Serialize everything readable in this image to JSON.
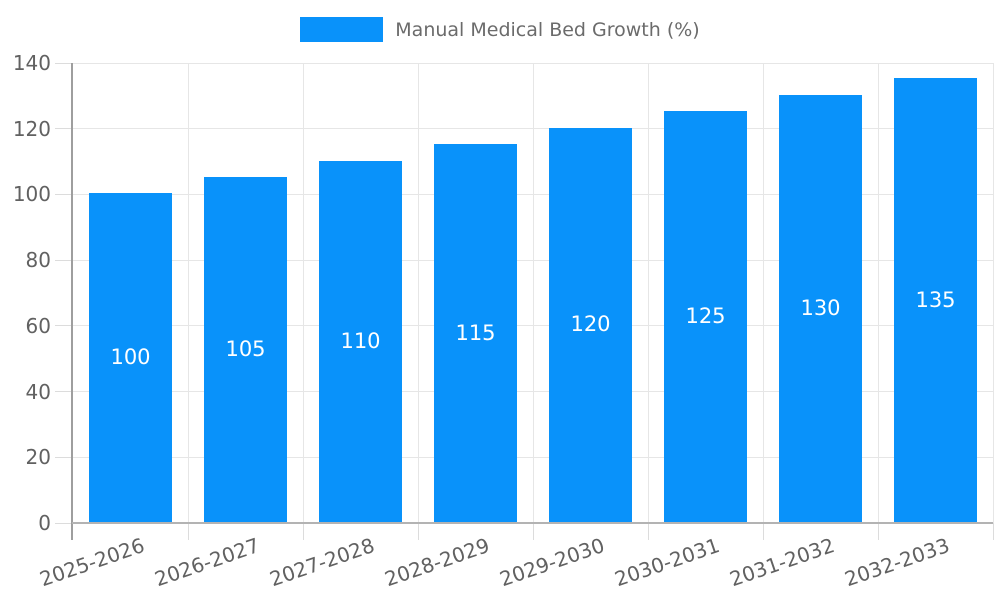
{
  "chart_data": {
    "type": "bar",
    "title": "Manual Medical Bed Growth (%)",
    "categories": [
      "2025-2026",
      "2026-2027",
      "2027-2028",
      "2028-2029",
      "2029-2030",
      "2030-2031",
      "2031-2032",
      "2032-2033"
    ],
    "values": [
      100,
      105,
      110,
      115,
      120,
      125,
      130,
      135
    ],
    "xlabel": "",
    "ylabel": "",
    "ylim": [
      0,
      140
    ],
    "yticks": [
      0,
      20,
      40,
      60,
      80,
      100,
      120,
      140
    ],
    "grid": true,
    "legend_position": "top",
    "value_labels": [
      "100",
      "105",
      "110",
      "115",
      "120",
      "125",
      "130",
      "135"
    ],
    "value_label_position": "center-inside"
  },
  "legend": {
    "label": "Manual Medical Bed Growth (%)",
    "swatch_color": "#0992fa"
  },
  "colors": {
    "bar": "#0992fa",
    "value_label_text": "#ffffff",
    "gridline": "#e6e6e6",
    "tick": "#dcdcdc",
    "axis_line": "#9e9e9e",
    "baseline": "#b3b3b3",
    "axis_text": "#616161",
    "legend_text": "#6b6b6b",
    "background": "#ffffff"
  }
}
